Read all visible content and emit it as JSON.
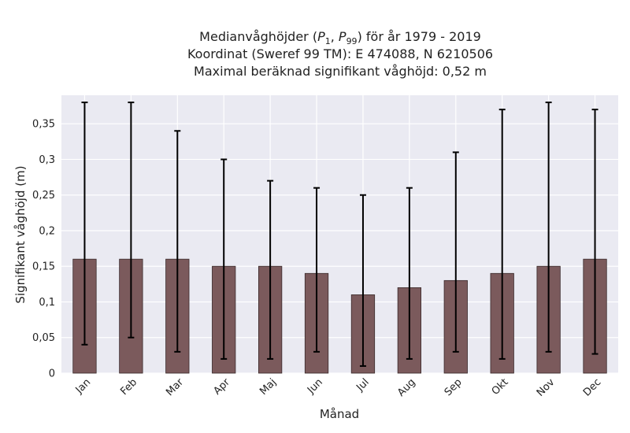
{
  "chart_data": {
    "type": "bar",
    "title_lines": [
      "Medianvåghöjder (P1, P99) för år 1979 - 2019",
      "Koordinat (Sweref 99 TM): E 474088, N 6210506",
      "Maximal beräknad signifikant våghöjd: 0,52 m"
    ],
    "xlabel": "Månad",
    "ylabel": "Signifikant våghöjd (m)",
    "categories": [
      "Jan",
      "Feb",
      "Mar",
      "Apr",
      "Maj",
      "Jun",
      "Jul",
      "Aug",
      "Sep",
      "Okt",
      "Nov",
      "Dec"
    ],
    "values": [
      0.16,
      0.16,
      0.16,
      0.15,
      0.15,
      0.14,
      0.11,
      0.12,
      0.13,
      0.14,
      0.15,
      0.16
    ],
    "error_low": [
      0.04,
      0.05,
      0.03,
      0.02,
      0.02,
      0.03,
      0.01,
      0.02,
      0.03,
      0.02,
      0.03,
      0.027
    ],
    "error_high": [
      0.38,
      0.38,
      0.34,
      0.3,
      0.27,
      0.26,
      0.25,
      0.26,
      0.31,
      0.37,
      0.38,
      0.37
    ],
    "ylim": [
      0,
      0.39
    ],
    "yticks": [
      0,
      0.05,
      0.1,
      0.15,
      0.2,
      0.25,
      0.3,
      0.35
    ],
    "ytick_labels": [
      "0",
      "0,05",
      "0,1",
      "0,15",
      "0,2",
      "0,25",
      "0,3",
      "0,35"
    ],
    "grid": true,
    "bar_color": "#7b5a5c",
    "bar_edge_color": "#3a2a2b",
    "error_color": "#000000",
    "plot_background": "#eaeaf2"
  }
}
